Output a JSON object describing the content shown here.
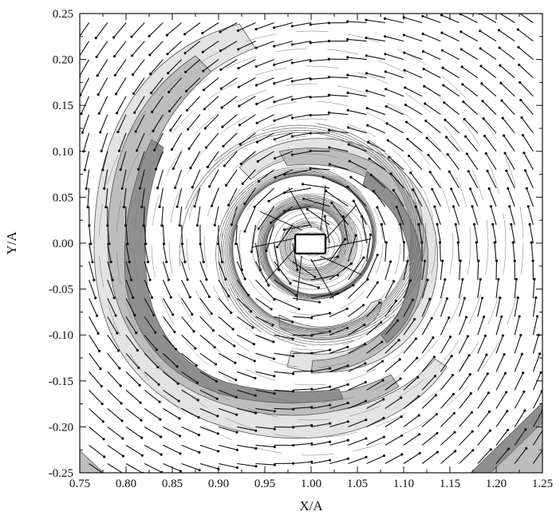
{
  "chart_data": {
    "type": "contour",
    "title": "",
    "xlabel": "X/A",
    "ylabel": "Y/A",
    "xlim": [
      0.75,
      1.25
    ],
    "ylim": [
      -0.25,
      0.25
    ],
    "x_ticks": [
      "0.75",
      "0.80",
      "0.85",
      "0.90",
      "0.95",
      "1.00",
      "1.05",
      "1.10",
      "1.15",
      "1.20",
      "1.25"
    ],
    "y_ticks": [
      "0.25",
      "0.20",
      "0.15",
      "0.10",
      "0.05",
      "0.00",
      "-0.05",
      "-0.10",
      "-0.15",
      "-0.20",
      "-0.25"
    ],
    "vortex_center": [
      1.0,
      0.0
    ],
    "rotation": "counter-clockwise",
    "grid": false,
    "legend": "none",
    "colors": {
      "light_fill": "#e3e3e3",
      "mid_fill": "#bdbdbd",
      "dark_fill": "#8f8f8f",
      "contour_line": "#555555",
      "vector": "#111111"
    }
  }
}
